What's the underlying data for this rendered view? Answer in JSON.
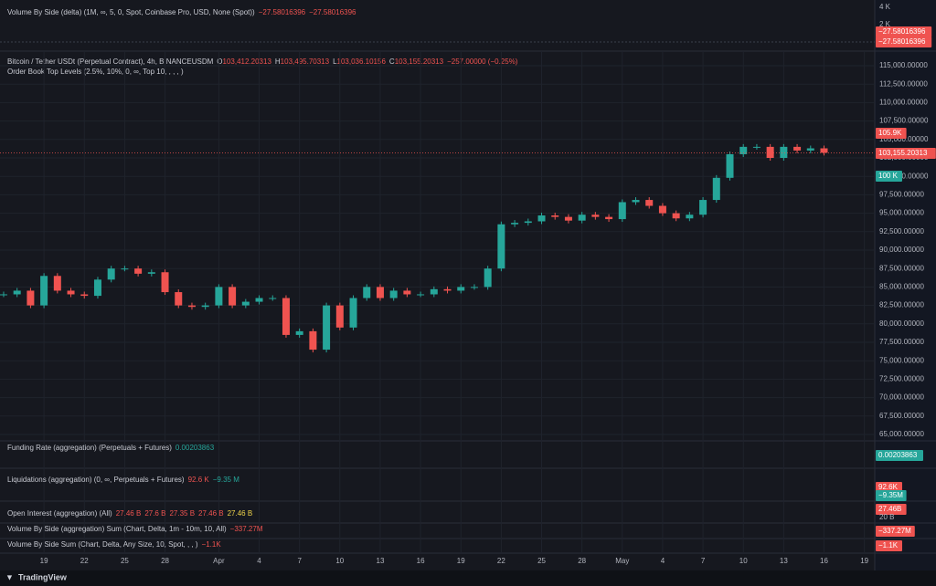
{
  "top_pane": {
    "title": "Volume By Side (delta) (1M, ∞, 5, 0, Spot, Coinbase Pro, USD, None (Spot))",
    "values": [
      "−27.58016396",
      "−27.58016396"
    ],
    "axis_labels": [
      "4 K",
      "2 K",
      "0"
    ],
    "price_labels": [
      "−27.58016396",
      "−27.58016396"
    ]
  },
  "main_pane": {
    "symbol": "Bitcoin / Tether USDt (Perpetual Contract), 4h, BINANCEUSDM",
    "ohlc": [
      {
        "key": "O",
        "value": "103,412.20313"
      },
      {
        "key": "H",
        "value": "103,495.70313"
      },
      {
        "key": "L",
        "value": "103,036.10156"
      },
      {
        "key": "C",
        "value": "103,155.20313"
      }
    ],
    "change": "−257.00000 (−0.25%)",
    "indicator": "Order Book Top Levels (2.5%, 10%, 0, ∞, Top 10, , , , )",
    "price_labels": [
      "105.9K",
      "103,155.20313",
      "100 K"
    ]
  },
  "chart_data": {
    "type": "candlestick",
    "values": [
      84000,
      84500,
      82500,
      86500,
      84500,
      84000,
      83800,
      86000,
      87500,
      87500,
      86800,
      87000,
      84300,
      82500,
      82300,
      82500,
      85000,
      82500,
      83000,
      83500,
      83500,
      78500,
      79000,
      76500,
      82500,
      79500,
      83500,
      85000,
      83500,
      84500,
      84000,
      84000,
      84700,
      84500,
      85000,
      85000,
      87500,
      93500,
      93700,
      93900,
      94700,
      94500,
      94000,
      94800,
      94500,
      94200,
      96500,
      96800,
      96000,
      95000,
      94300,
      94800,
      96800,
      99800,
      103000,
      104000,
      104000,
      102500,
      104000,
      103500,
      103800,
      103200
    ],
    "ylim": [
      64134,
      116485
    ],
    "yticks": [
      {
        "value": 65000,
        "label": "65,000.00000"
      },
      {
        "value": 67500,
        "label": "67,500.00000"
      },
      {
        "value": 70000,
        "label": "70,000.00000"
      },
      {
        "value": 72500,
        "label": "72,500.00000"
      },
      {
        "value": 75000,
        "label": "75,000.00000"
      },
      {
        "value": 77500,
        "label": "77,500.00000"
      },
      {
        "value": 80000,
        "label": "80,000.00000"
      },
      {
        "value": 82500,
        "label": "82,500.00000"
      },
      {
        "value": 85000,
        "label": "85,000.00000"
      },
      {
        "value": 87500,
        "label": "87,500.00000"
      },
      {
        "value": 90000,
        "label": "90,000.00000"
      },
      {
        "value": 92500,
        "label": "92,500.00000"
      },
      {
        "value": 95000,
        "label": "95,000.00000"
      },
      {
        "value": 97500,
        "label": "97,500.00000"
      },
      {
        "value": 100000,
        "label": "100,000.00000"
      },
      {
        "value": 102500,
        "label": "102,500.00000"
      },
      {
        "value": 105000,
        "label": "105,000.00000"
      },
      {
        "value": 107500,
        "label": "107,500.00000"
      },
      {
        "value": 110000,
        "label": "110,000.00000"
      },
      {
        "value": 112500,
        "label": "112,500.00000"
      },
      {
        "value": 115000,
        "label": "115,000.00000"
      }
    ],
    "xlim": [
      -0.27,
      64.5
    ],
    "xticks": [
      {
        "value": 3,
        "label": "19"
      },
      {
        "value": 6,
        "label": "22"
      },
      {
        "value": 9,
        "label": "25"
      },
      {
        "value": 12,
        "label": "28"
      },
      {
        "value": 16,
        "label": "Apr"
      },
      {
        "value": 19,
        "label": "4"
      },
      {
        "value": 22,
        "label": "7"
      },
      {
        "value": 25,
        "label": "10"
      },
      {
        "value": 28,
        "label": "13"
      },
      {
        "value": 31,
        "label": "16"
      },
      {
        "value": 34,
        "label": "19"
      },
      {
        "value": 37,
        "label": "22"
      },
      {
        "value": 40,
        "label": "25"
      },
      {
        "value": 43,
        "label": "28"
      },
      {
        "value": 46,
        "label": "May"
      },
      {
        "value": 49,
        "label": "4"
      },
      {
        "value": 52,
        "label": "7"
      },
      {
        "value": 55,
        "label": "10"
      },
      {
        "value": 58,
        "label": "13"
      },
      {
        "value": 61,
        "label": "16"
      },
      {
        "value": 64,
        "label": "19"
      }
    ],
    "up_color": "#26a69a",
    "down_color": "#ef5350"
  },
  "panes": [
    {
      "title": "Funding Rate (aggregation) (Perpetuals + Futures)",
      "values": [
        "0.00203863"
      ],
      "price_labels": [
        "0.00203863"
      ]
    },
    {
      "title": "Liquidations (aggregation) (0, ∞, Perpetuals + Futures)",
      "values": [
        "92.6 K",
        "−9.35 M"
      ],
      "price_labels": [
        "92.6K",
        "−9.35M"
      ]
    },
    {
      "title": "Open Interest (aggregation) (All)",
      "values": [
        "27.46 B",
        "27.6 B",
        "27.35 B",
        "27.46 B",
        "27.46 B"
      ],
      "price_labels": [
        "27.46B",
        "20 B"
      ]
    },
    {
      "title": "Volume By Side (aggregation) Sum (Chart, Delta, 1m - 10m, 10, All)",
      "values": [
        "−337.27M"
      ],
      "price_labels": [
        "−337.27M"
      ]
    },
    {
      "title": "Volume By Side Sum (Chart, Delta, Any Size, 10, Spot, , , )",
      "values": [
        "−1.1K"
      ],
      "price_labels": [
        "−1.1K"
      ]
    }
  ],
  "footer": "TradingView"
}
